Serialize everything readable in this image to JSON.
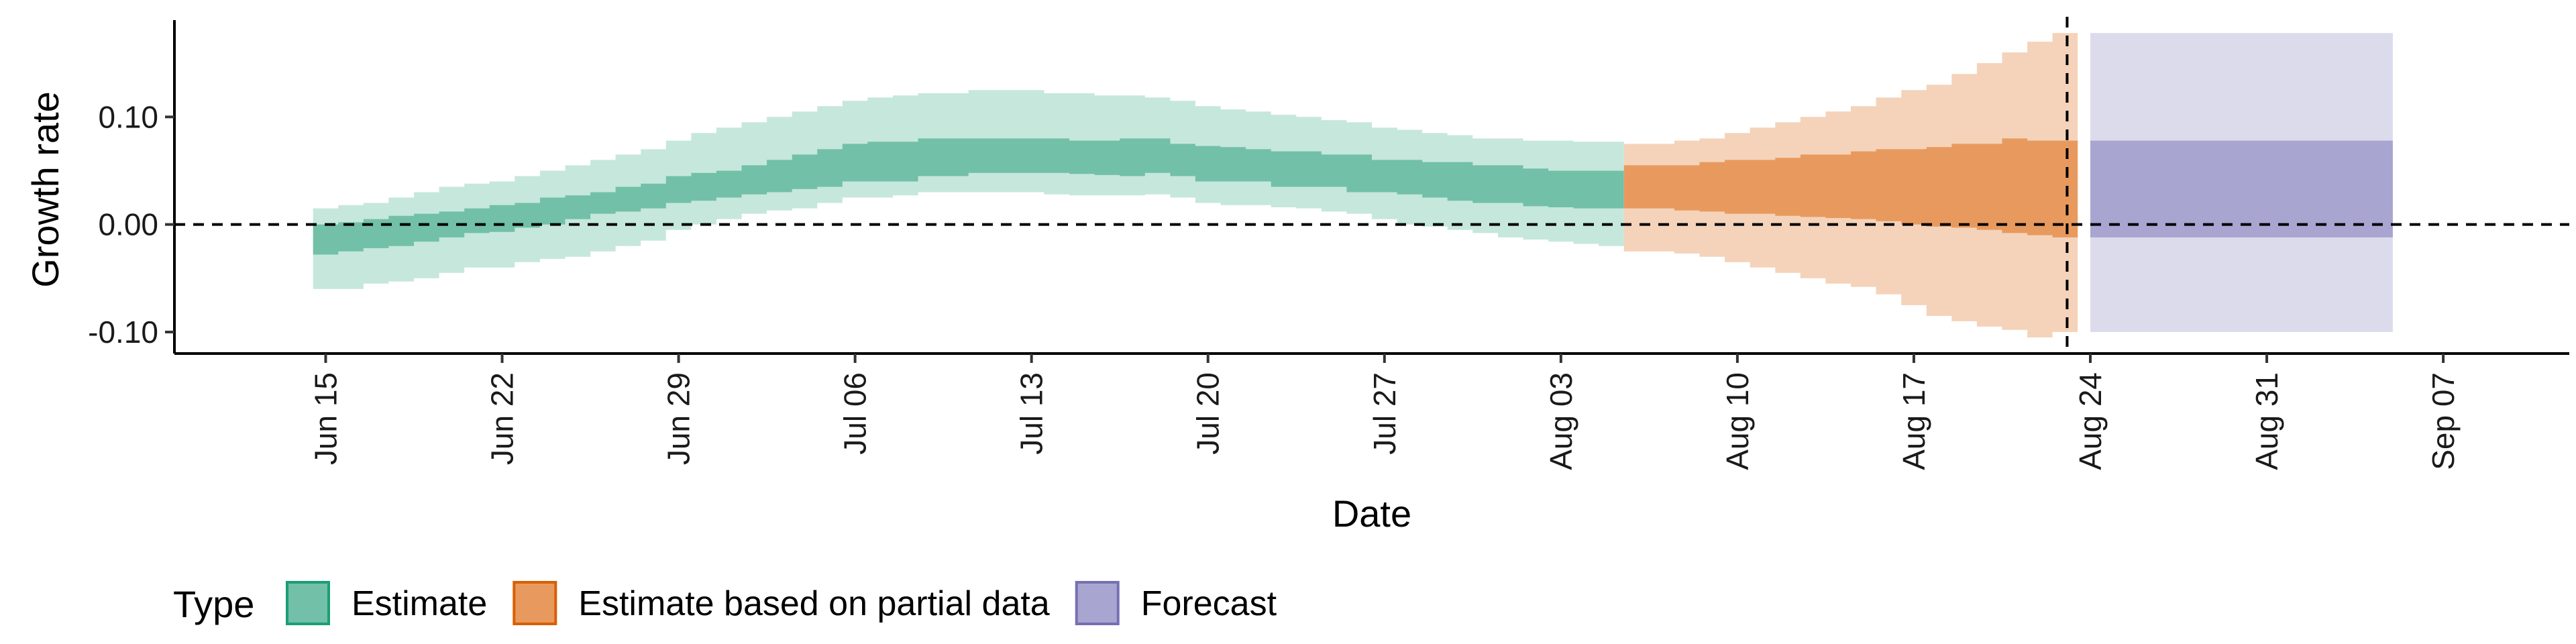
{
  "chart_data": {
    "type": "area",
    "xlabel": "Date",
    "ylabel": "Growth rate",
    "xlim": [
      "2020-06-09",
      "2020-09-12"
    ],
    "ylim": [
      -0.12,
      0.19
    ],
    "x_ticks": [
      "2020-06-15",
      "2020-06-22",
      "2020-06-29",
      "2020-07-06",
      "2020-07-13",
      "2020-07-20",
      "2020-07-27",
      "2020-08-03",
      "2020-08-10",
      "2020-08-17",
      "2020-08-24",
      "2020-08-31",
      "2020-09-07"
    ],
    "x_tick_labels": [
      "Jun 15",
      "Jun 22",
      "Jun 29",
      "Jul 06",
      "Jul 13",
      "Jul 20",
      "Jul 27",
      "Aug 03",
      "Aug 10",
      "Aug 17",
      "Aug 24",
      "Aug 31",
      "Sep 07"
    ],
    "y_ticks": [
      -0.1,
      0.0,
      0.1
    ],
    "y_tick_labels": [
      "-0.10",
      "0.00",
      "0.10"
    ],
    "reference_line_y": 0,
    "reference_line_x": "2020-08-23",
    "grid": false,
    "legend": {
      "title": "Type",
      "position": "bottom-left",
      "entries": [
        {
          "label": "Estimate",
          "fill": "#72c0a7",
          "border": "#1b9e77"
        },
        {
          "label": "Estimate based on partial data",
          "fill": "#e89a5e",
          "border": "#d95f02"
        },
        {
          "label": "Forecast",
          "fill": "#a9a5d1",
          "border": "#7570b3"
        }
      ]
    },
    "series": [
      {
        "name": "Estimate",
        "color_light": "#c6e7dc",
        "color_dark": "#72c0a7",
        "x": [
          "2020-06-15",
          "2020-06-16",
          "2020-06-17",
          "2020-06-18",
          "2020-06-19",
          "2020-06-20",
          "2020-06-21",
          "2020-06-22",
          "2020-06-23",
          "2020-06-24",
          "2020-06-25",
          "2020-06-26",
          "2020-06-27",
          "2020-06-28",
          "2020-06-29",
          "2020-06-30",
          "2020-07-01",
          "2020-07-02",
          "2020-07-03",
          "2020-07-04",
          "2020-07-05",
          "2020-07-06",
          "2020-07-07",
          "2020-07-08",
          "2020-07-09",
          "2020-07-10",
          "2020-07-11",
          "2020-07-12",
          "2020-07-13",
          "2020-07-14",
          "2020-07-15",
          "2020-07-16",
          "2020-07-17",
          "2020-07-18",
          "2020-07-19",
          "2020-07-20",
          "2020-07-21",
          "2020-07-22",
          "2020-07-23",
          "2020-07-24",
          "2020-07-25",
          "2020-07-26",
          "2020-07-27",
          "2020-07-28",
          "2020-07-29",
          "2020-07-30",
          "2020-07-31",
          "2020-08-01",
          "2020-08-02",
          "2020-08-03",
          "2020-08-04",
          "2020-08-05"
        ],
        "lower_90": [
          -0.06,
          -0.06,
          -0.055,
          -0.053,
          -0.05,
          -0.045,
          -0.04,
          -0.04,
          -0.035,
          -0.032,
          -0.03,
          -0.025,
          -0.02,
          -0.015,
          -0.005,
          0.0,
          0.005,
          0.01,
          0.013,
          0.015,
          0.02,
          0.025,
          0.025,
          0.027,
          0.03,
          0.03,
          0.03,
          0.03,
          0.03,
          0.028,
          0.027,
          0.027,
          0.027,
          0.028,
          0.025,
          0.02,
          0.018,
          0.018,
          0.016,
          0.015,
          0.012,
          0.01,
          0.005,
          0.0,
          -0.002,
          -0.005,
          -0.008,
          -0.012,
          -0.014,
          -0.016,
          -0.018,
          -0.02
        ],
        "lower_50": [
          -0.028,
          -0.025,
          -0.022,
          -0.02,
          -0.016,
          -0.012,
          -0.008,
          -0.007,
          -0.003,
          0.0,
          0.005,
          0.01,
          0.012,
          0.015,
          0.02,
          0.022,
          0.025,
          0.028,
          0.03,
          0.033,
          0.035,
          0.04,
          0.04,
          0.04,
          0.045,
          0.045,
          0.048,
          0.048,
          0.048,
          0.048,
          0.047,
          0.046,
          0.045,
          0.048,
          0.045,
          0.04,
          0.04,
          0.04,
          0.035,
          0.035,
          0.035,
          0.03,
          0.03,
          0.028,
          0.025,
          0.022,
          0.02,
          0.02,
          0.017,
          0.016,
          0.015,
          0.015
        ],
        "upper_50": [
          0.0,
          0.002,
          0.005,
          0.008,
          0.01,
          0.012,
          0.015,
          0.018,
          0.02,
          0.025,
          0.027,
          0.03,
          0.035,
          0.038,
          0.045,
          0.048,
          0.05,
          0.055,
          0.06,
          0.065,
          0.07,
          0.075,
          0.077,
          0.077,
          0.08,
          0.08,
          0.08,
          0.08,
          0.08,
          0.08,
          0.078,
          0.078,
          0.08,
          0.08,
          0.075,
          0.073,
          0.072,
          0.07,
          0.068,
          0.068,
          0.065,
          0.065,
          0.06,
          0.06,
          0.058,
          0.058,
          0.055,
          0.055,
          0.052,
          0.05,
          0.05,
          0.05
        ],
        "upper_90": [
          0.015,
          0.018,
          0.02,
          0.025,
          0.03,
          0.035,
          0.038,
          0.04,
          0.045,
          0.05,
          0.055,
          0.06,
          0.065,
          0.07,
          0.078,
          0.085,
          0.09,
          0.095,
          0.1,
          0.105,
          0.11,
          0.115,
          0.118,
          0.12,
          0.122,
          0.122,
          0.125,
          0.125,
          0.125,
          0.122,
          0.122,
          0.12,
          0.12,
          0.118,
          0.115,
          0.11,
          0.107,
          0.105,
          0.102,
          0.1,
          0.097,
          0.095,
          0.09,
          0.088,
          0.085,
          0.083,
          0.08,
          0.08,
          0.078,
          0.078,
          0.077,
          0.077
        ]
      },
      {
        "name": "Estimate based on partial data",
        "color_light": "#f4d3ba",
        "color_dark": "#e89a5e",
        "x": [
          "2020-08-06",
          "2020-08-07",
          "2020-08-08",
          "2020-08-09",
          "2020-08-10",
          "2020-08-11",
          "2020-08-12",
          "2020-08-13",
          "2020-08-14",
          "2020-08-15",
          "2020-08-16",
          "2020-08-17",
          "2020-08-18",
          "2020-08-19",
          "2020-08-20",
          "2020-08-21",
          "2020-08-22",
          "2020-08-23"
        ],
        "lower_90": [
          -0.025,
          -0.025,
          -0.027,
          -0.03,
          -0.035,
          -0.04,
          -0.045,
          -0.05,
          -0.055,
          -0.058,
          -0.065,
          -0.075,
          -0.085,
          -0.09,
          -0.095,
          -0.098,
          -0.105,
          -0.1
        ],
        "lower_50": [
          0.015,
          0.015,
          0.013,
          0.012,
          0.01,
          0.01,
          0.008,
          0.007,
          0.006,
          0.005,
          0.003,
          0.0,
          -0.002,
          -0.003,
          -0.005,
          -0.008,
          -0.01,
          -0.012
        ],
        "upper_50": [
          0.055,
          0.055,
          0.055,
          0.058,
          0.06,
          0.06,
          0.062,
          0.065,
          0.065,
          0.068,
          0.07,
          0.07,
          0.072,
          0.075,
          0.075,
          0.08,
          0.078,
          0.078
        ],
        "upper_90": [
          0.075,
          0.075,
          0.078,
          0.08,
          0.085,
          0.09,
          0.095,
          0.1,
          0.105,
          0.11,
          0.118,
          0.125,
          0.13,
          0.14,
          0.15,
          0.16,
          0.17,
          0.178
        ]
      },
      {
        "name": "Forecast",
        "color_light": "#dcdbec",
        "color_dark": "#a9a5d1",
        "x": [
          "2020-08-24",
          "2020-09-05"
        ],
        "lower_90": [
          -0.1,
          -0.1
        ],
        "lower_50": [
          -0.012,
          -0.012
        ],
        "upper_50": [
          0.078,
          0.078
        ],
        "upper_90": [
          0.178,
          0.178
        ]
      }
    ]
  }
}
